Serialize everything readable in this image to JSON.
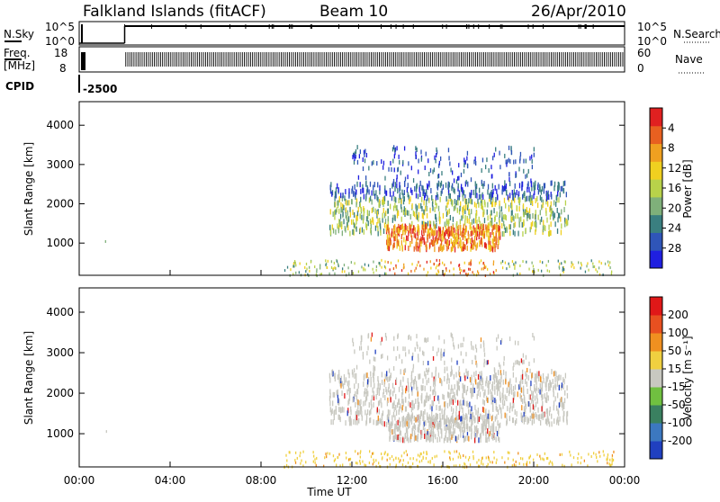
{
  "header": {
    "station": "Falkland Islands (fitACF)",
    "beam": "Beam 10",
    "date": "26/Apr/2010"
  },
  "panels": {
    "nsky": {
      "label": "N.Sky",
      "right_label": "N.Search",
      "left_ticks": [
        "10^5",
        "10^0"
      ],
      "right_ticks": [
        "10^5",
        "10^0"
      ]
    },
    "freq": {
      "label_line1": "Freq.",
      "label_line2": "[MHz]",
      "right_label": "Nave",
      "left_ticks": [
        "18",
        "8"
      ],
      "right_ticks": [
        "60",
        "0"
      ]
    },
    "cpid": {
      "label": "CPID",
      "value": "-2500"
    }
  },
  "chart_data": [
    {
      "type": "heatmap",
      "name": "power",
      "ylabel": "Slant Range [km]",
      "xlabel": "",
      "xlim": [
        0,
        24
      ],
      "ylim": [
        180,
        4600
      ],
      "yticks": [
        1000,
        2000,
        3000,
        4000
      ],
      "colorbar": {
        "label": "Power [dB]",
        "ticks": [
          "4",
          "8",
          "12",
          "16",
          "20",
          "24",
          "28"
        ],
        "colors": [
          "#1f1fe0",
          "#2f55b8",
          "#3a7f80",
          "#7fb07a",
          "#b8d24a",
          "#f0d020",
          "#f0a020",
          "#e86020",
          "#e02020"
        ]
      }
    },
    {
      "type": "heatmap",
      "name": "velocity",
      "ylabel": "Slant Range [km]",
      "xlabel": "Time UT",
      "xlim": [
        0,
        24
      ],
      "ylim": [
        180,
        4600
      ],
      "yticks": [
        1000,
        2000,
        3000,
        4000
      ],
      "xticks": [
        "00:00",
        "04:00",
        "08:00",
        "12:00",
        "16:00",
        "20:00",
        "00:00"
      ],
      "colorbar": {
        "label": "Velocity [m s⁻¹]",
        "ticks": [
          "200",
          "100",
          "50",
          "15",
          "-15",
          "-50",
          "-100",
          "-200"
        ],
        "colors": [
          "#2040c0",
          "#3c78c0",
          "#3a8060",
          "#70c040",
          "#c8c8c0",
          "#f0d040",
          "#f09020",
          "#e85020",
          "#e01818"
        ]
      }
    }
  ],
  "colors": {
    "power_low": "#1f1fe0",
    "power_high": "#e02020",
    "velocity_neutral": "#c8c8c0",
    "velocity_negative": "#f0b040"
  }
}
